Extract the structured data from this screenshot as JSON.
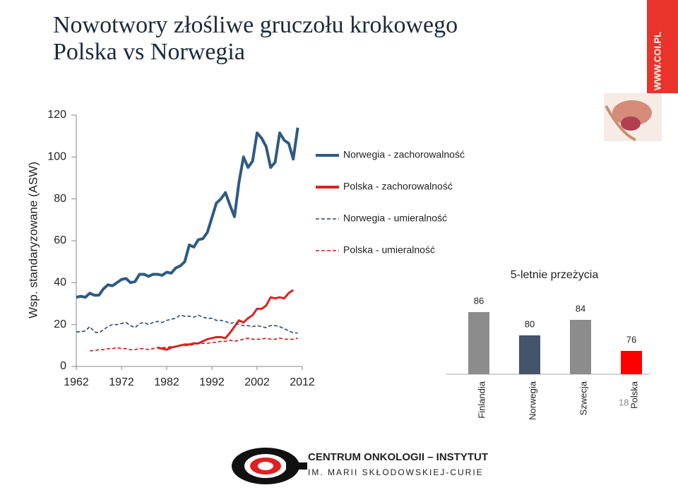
{
  "slide": {
    "title_line1": "Nowotwory złośliwe gruczołu krokowego",
    "title_line2": "Polska vs Norwegia",
    "url": "WWW.COI.PL",
    "page_number": "18",
    "logo_line1": "CENTRUM ONKOLOGII – INSTYTUT",
    "logo_line2": "IM. MARII SKŁODOWSKIEJ-CURIE"
  },
  "chart_data": [
    {
      "type": "line",
      "y_label": "Wsp. standaryzowane (ASW)",
      "x": [
        1962,
        1963,
        1964,
        1965,
        1966,
        1967,
        1968,
        1969,
        1970,
        1971,
        1972,
        1973,
        1974,
        1975,
        1976,
        1977,
        1978,
        1979,
        1980,
        1981,
        1982,
        1983,
        1984,
        1985,
        1986,
        1987,
        1988,
        1989,
        1990,
        1991,
        1992,
        1993,
        1994,
        1995,
        1996,
        1997,
        1998,
        1999,
        2000,
        2001,
        2002,
        2003,
        2004,
        2005,
        2006,
        2007,
        2008,
        2009,
        2010,
        2011
      ],
      "xlim": [
        1962,
        2012
      ],
      "xticks": [
        1962,
        1972,
        1982,
        1992,
        2002,
        2012
      ],
      "ylim": [
        0,
        120
      ],
      "yticks": [
        0,
        20,
        40,
        60,
        80,
        100,
        120
      ],
      "legend": "upper right",
      "series": [
        {
          "name": "Norwegia - zachorowalność",
          "color": "#2e5b82",
          "dashed": false,
          "values": [
            33,
            33.5,
            33,
            35,
            34,
            34,
            37,
            39,
            38.5,
            40,
            41.5,
            42,
            40,
            40.5,
            44,
            44,
            43,
            44,
            44,
            43.5,
            45,
            44.5,
            47,
            48,
            50,
            58,
            57,
            60.5,
            61,
            64,
            71,
            78,
            80,
            83,
            77,
            71.5,
            88,
            100,
            95,
            98,
            111.5,
            109,
            105,
            95,
            97.5,
            111.5,
            108,
            106.5,
            99,
            114
          ]
        },
        {
          "name": "Polska - zachorowalność",
          "color": "#e02020",
          "dashed": false,
          "values": [
            null,
            null,
            null,
            null,
            null,
            null,
            null,
            null,
            null,
            null,
            null,
            null,
            null,
            null,
            null,
            null,
            null,
            null,
            9,
            8.5,
            8,
            9,
            9.5,
            10,
            10.5,
            10.5,
            11,
            11,
            12,
            13,
            13.5,
            14,
            14,
            13.5,
            16,
            19,
            22,
            21,
            23,
            24.5,
            27.5,
            27.5,
            29,
            33,
            32.5,
            33,
            32.5,
            35,
            36.5,
            null
          ]
        },
        {
          "name": "Norwegia - umieralność",
          "color": "#2e4a6a",
          "dashed": true,
          "values": [
            16.5,
            16.5,
            17,
            19,
            16.5,
            16,
            17.5,
            19,
            20,
            20,
            20.5,
            21,
            19.5,
            18.5,
            20.5,
            21,
            20,
            21,
            21.5,
            21,
            22,
            22.5,
            23,
            24.5,
            24,
            24,
            23.5,
            24.5,
            23.5,
            23,
            23,
            22,
            22,
            21.5,
            20.5,
            21,
            20,
            19.5,
            19.5,
            19,
            19.5,
            19,
            18.5,
            19.5,
            19.5,
            19,
            18,
            17,
            16,
            16
          ]
        },
        {
          "name": "Polska - umieralność",
          "color": "#d01818",
          "dashed": true,
          "values": [
            null,
            null,
            null,
            7.5,
            7.5,
            8,
            8,
            8.5,
            8.5,
            9,
            8.5,
            8.5,
            8,
            8,
            8.5,
            8.5,
            8,
            8.5,
            9,
            9,
            9,
            9.5,
            9.5,
            10,
            10,
            10,
            10.5,
            11,
            11,
            11,
            11.5,
            11.5,
            12,
            12,
            12.5,
            12,
            12.5,
            13,
            13.5,
            13,
            13,
            13,
            13.5,
            13,
            13,
            13.5,
            13,
            13,
            13,
            13.5
          ]
        }
      ]
    },
    {
      "type": "bar",
      "title": "5-letnie przeżycia",
      "categories": [
        "Finlandia",
        "Norwegia",
        "Szwecja",
        "Polska"
      ],
      "values": [
        86,
        80,
        84,
        76
      ],
      "colors": [
        "#8c8c8c",
        "#44546a",
        "#8c8c8c",
        "#ff0000"
      ],
      "ylim": [
        70,
        90
      ]
    }
  ]
}
